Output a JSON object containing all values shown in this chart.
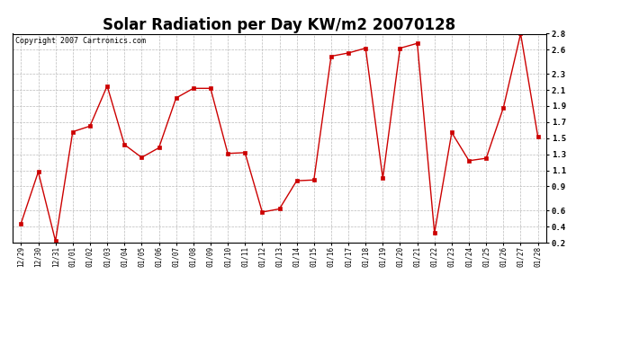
{
  "title": "Solar Radiation per Day KW/m2 20070128",
  "copyright": "Copyright 2007 Cartronics.com",
  "x_labels": [
    "12/29",
    "12/30",
    "12/31",
    "01/01",
    "01/02",
    "01/03",
    "01/04",
    "01/05",
    "01/06",
    "01/07",
    "01/08",
    "01/09",
    "01/10",
    "01/11",
    "01/12",
    "01/13",
    "01/14",
    "01/15",
    "01/16",
    "01/17",
    "01/18",
    "01/19",
    "01/20",
    "01/21",
    "01/22",
    "01/23",
    "01/24",
    "01/25",
    "01/26",
    "01/27",
    "01/28"
  ],
  "y_values": [
    0.44,
    1.08,
    0.22,
    1.58,
    1.65,
    2.15,
    1.42,
    1.26,
    1.38,
    2.0,
    2.12,
    2.12,
    1.31,
    1.32,
    0.58,
    0.62,
    0.97,
    0.98,
    2.52,
    2.56,
    2.62,
    1.0,
    2.62,
    2.68,
    0.32,
    1.57,
    1.22,
    1.25,
    1.88,
    2.8,
    1.52
  ],
  "line_color": "#cc0000",
  "marker_color": "#cc0000",
  "bg_color": "#ffffff",
  "plot_bg_color": "#ffffff",
  "grid_color": "#bbbbbb",
  "y_min": 0.2,
  "y_max": 2.8,
  "y_ticks": [
    0.2,
    0.4,
    0.6,
    0.9,
    1.1,
    1.3,
    1.5,
    1.7,
    1.9,
    2.1,
    2.3,
    2.6,
    2.8
  ],
  "title_fontsize": 12,
  "copyright_fontsize": 6
}
